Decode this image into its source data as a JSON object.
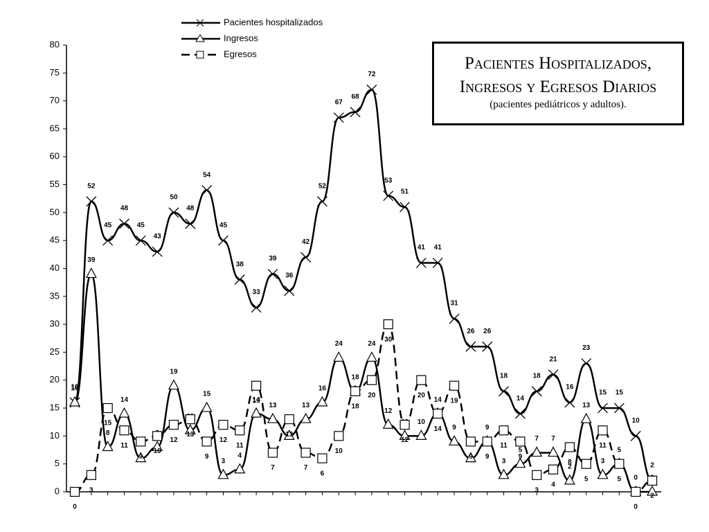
{
  "chart_data": {
    "type": "line",
    "title": "Pacientes Hospitalizados, Ingresos y Egresos Diarios",
    "subtitle": "(pacientes pediátricos y adultos).",
    "categories": [
      null,
      null,
      null,
      null,
      null,
      null,
      null,
      null,
      null,
      null,
      null,
      null,
      null,
      null,
      null,
      null,
      null,
      null,
      null,
      null,
      null,
      null,
      null,
      null,
      null,
      null,
      null,
      null,
      null,
      null,
      null,
      null,
      null,
      null,
      null,
      null
    ],
    "series": [
      {
        "name": "Pacientes hospitalizados",
        "color": "#000000",
        "marker": "x",
        "dash": false,
        "values": [
          16,
          52,
          45,
          48,
          45,
          43,
          50,
          48,
          54,
          45,
          38,
          33,
          39,
          36,
          42,
          52,
          67,
          68,
          72,
          53,
          51,
          41,
          41,
          31,
          26,
          26,
          18,
          14,
          18,
          21,
          16,
          23,
          15,
          15,
          10,
          2
        ]
      },
      {
        "name": "Ingresos",
        "color": "#000000",
        "marker": "triangle",
        "dash": false,
        "values": [
          16,
          39,
          8,
          14,
          6,
          8,
          19,
          11,
          15,
          3,
          4,
          14,
          13,
          10,
          13,
          16,
          24,
          18,
          24,
          12,
          10,
          10,
          14,
          9,
          6,
          9,
          3,
          5,
          7,
          7,
          2,
          13,
          3,
          5,
          0,
          0
        ]
      },
      {
        "name": "Egresos",
        "color": "#000000",
        "marker": "square",
        "dash": true,
        "values": [
          0,
          3,
          15,
          11,
          9,
          10,
          12,
          13,
          9,
          12,
          11,
          19,
          7,
          13,
          7,
          6,
          10,
          18,
          20,
          30,
          12,
          20,
          14,
          19,
          9,
          9,
          11,
          9,
          3,
          4,
          8,
          5,
          11,
          5,
          0,
          2
        ]
      }
    ],
    "ylim": [
      0,
      80
    ],
    "yticks": [
      0,
      5,
      10,
      15,
      20,
      25,
      30,
      35,
      40,
      45,
      50,
      55,
      60,
      65,
      70,
      75,
      80
    ],
    "grid": false
  }
}
